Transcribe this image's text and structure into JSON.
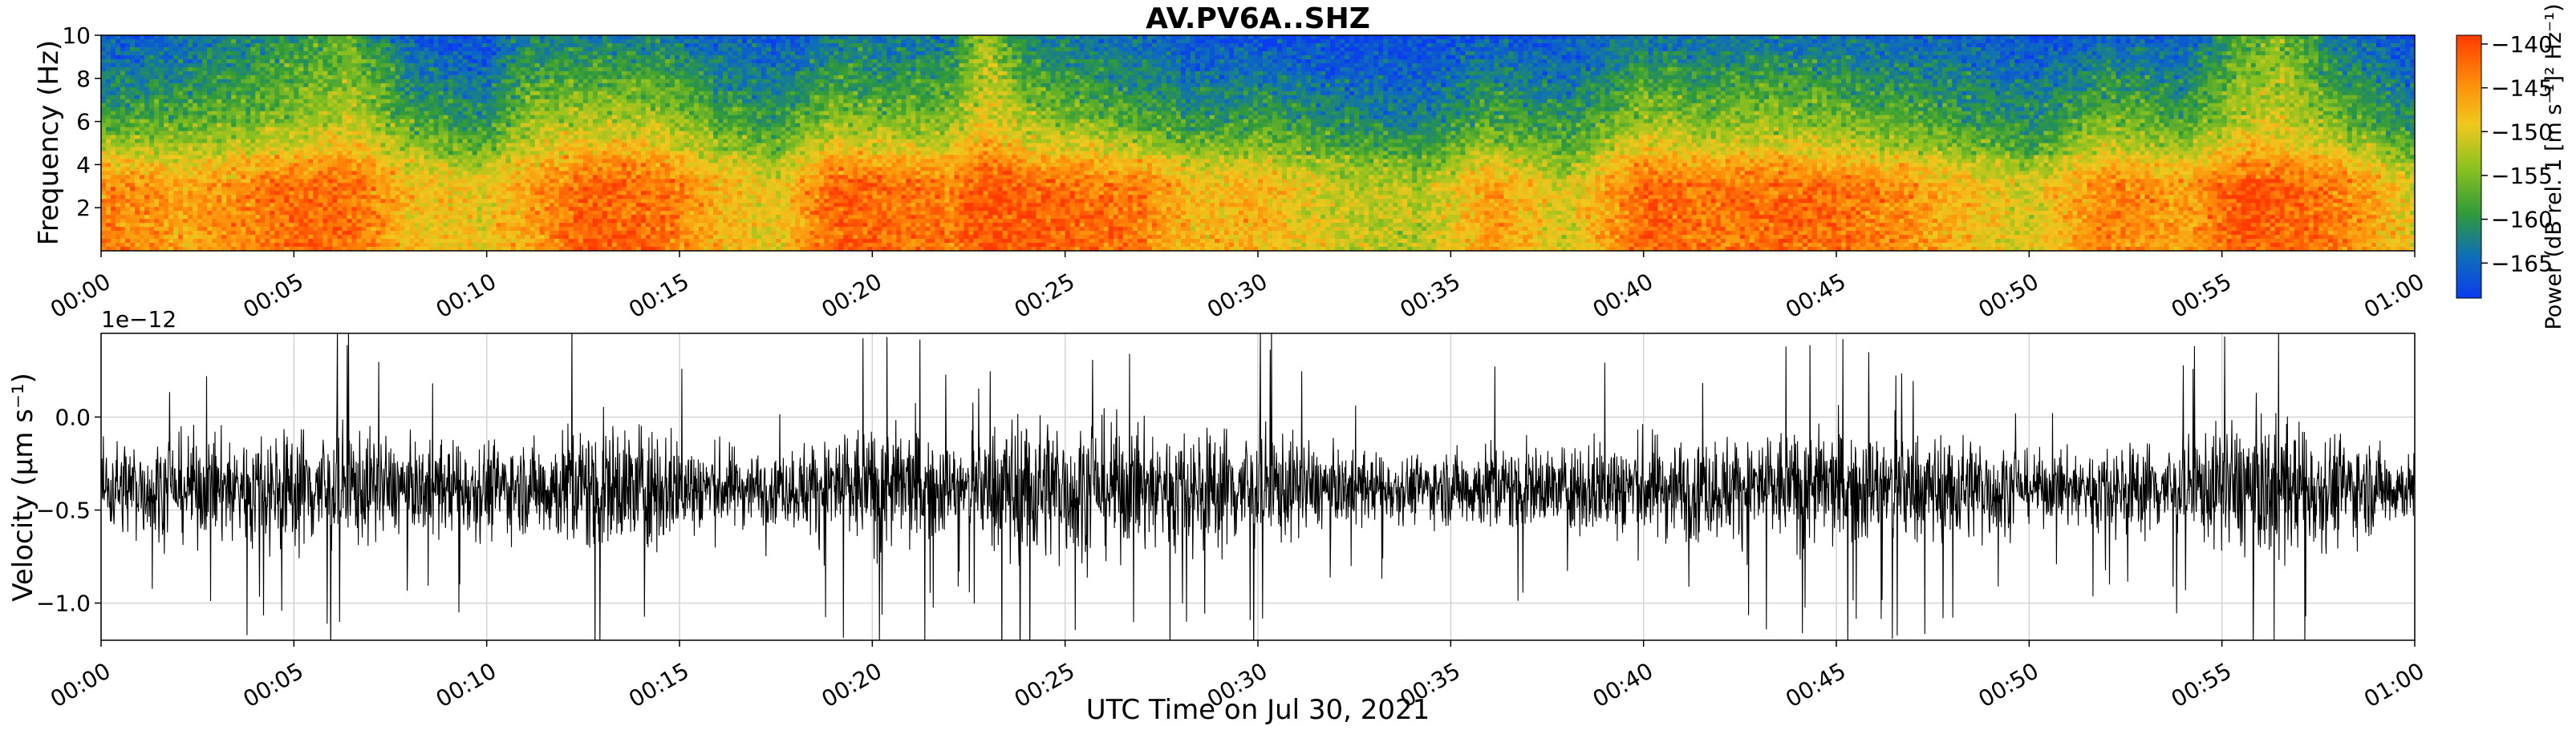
{
  "chart_data": [
    {
      "type": "heatmap",
      "title": "AV.PV6A..SHZ",
      "xlabel": "",
      "ylabel": "Frequency (Hz)",
      "x_ticks": [
        "00:00",
        "00:05",
        "00:10",
        "00:15",
        "00:20",
        "00:25",
        "00:30",
        "00:35",
        "00:40",
        "00:45",
        "00:50",
        "00:55",
        "01:00"
      ],
      "y_ticks": [
        2,
        4,
        6,
        8,
        10
      ],
      "ylim": [
        0,
        10
      ],
      "xlim_minutes": [
        0,
        60
      ],
      "colorbar": {
        "label": "Power (dB rel. 1 [m s⁻¹]² Hz⁻¹)",
        "ticks": [
          -140,
          -145,
          -150,
          -155,
          -160,
          -165
        ],
        "range": [
          -169,
          -139
        ],
        "colors": [
          "#0a3cf0",
          "#0f6fb8",
          "#2f9a3a",
          "#8fc21e",
          "#f0c81e",
          "#ff8c0a",
          "#ff3a00"
        ]
      },
      "band_power_db": {
        "minutes": [
          0,
          2,
          3,
          5,
          6.5,
          8,
          10,
          11,
          12.5,
          14.5,
          16,
          17.5,
          19,
          20.5,
          22,
          23,
          24,
          25.5,
          27,
          28.5,
          30,
          32,
          34.5,
          36,
          38,
          40,
          41.5,
          43,
          45,
          47,
          49,
          50,
          52,
          54,
          55.5,
          56.5,
          58,
          60
        ],
        "low_0_3hz": [
          -143,
          -146,
          -145,
          -142,
          -142,
          -148,
          -149,
          -146,
          -141,
          -142,
          -147,
          -150,
          -141,
          -142,
          -143,
          -140,
          -141,
          -142,
          -143,
          -148,
          -147,
          -151,
          -152,
          -145,
          -151,
          -141,
          -143,
          -142,
          -142,
          -145,
          -149,
          -151,
          -143,
          -146,
          -140,
          -141,
          -143,
          -150
        ],
        "mid_3_6hz": [
          -158,
          -157,
          -156,
          -154,
          -151,
          -157,
          -160,
          -154,
          -152,
          -152,
          -157,
          -159,
          -154,
          -155,
          -154,
          -149,
          -153,
          -155,
          -157,
          -160,
          -158,
          -161,
          -162,
          -157,
          -160,
          -153,
          -155,
          -154,
          -155,
          -157,
          -159,
          -161,
          -155,
          -158,
          -152,
          -151,
          -155,
          -161
        ],
        "high_6_10hz": [
          -167,
          -165,
          -163,
          -160,
          -157,
          -166,
          -168,
          -162,
          -163,
          -163,
          -165,
          -167,
          -163,
          -164,
          -163,
          -153,
          -162,
          -164,
          -165,
          -167,
          -167,
          -168,
          -168,
          -166,
          -167,
          -163,
          -164,
          -163,
          -164,
          -165,
          -166,
          -167,
          -165,
          -166,
          -158,
          -155,
          -163,
          -168
        ]
      }
    },
    {
      "type": "line",
      "title": "",
      "xlabel": "UTC Time on Jul 30, 2021",
      "ylabel": "Velocity (μm s⁻¹)",
      "offset_text": "1e−12",
      "x_ticks": [
        "00:00",
        "00:05",
        "00:10",
        "00:15",
        "00:20",
        "00:25",
        "00:30",
        "00:35",
        "00:40",
        "00:45",
        "00:50",
        "00:55",
        "01:00"
      ],
      "y_ticks": [
        0.0,
        -0.5,
        -1.0
      ],
      "y_tick_labels": [
        "0.0",
        "−0.5",
        "−1.0"
      ],
      "ylim": [
        -1.2,
        0.45
      ],
      "xlim_minutes": [
        0,
        60
      ],
      "grid": true,
      "series": [
        {
          "name": "velocity",
          "baseline": -0.38,
          "envelope_minutes": [
            0,
            3,
            5,
            6,
            8,
            10,
            11,
            12.5,
            14.5,
            16,
            17.5,
            19,
            21,
            22.5,
            23.5,
            25,
            27,
            28.5,
            30,
            32,
            34.5,
            36,
            38,
            39,
            41.5,
            43,
            45,
            47,
            49,
            50,
            52,
            54,
            55.5,
            56.5,
            58,
            60
          ],
          "envelope_amplitude": [
            0.42,
            0.5,
            0.55,
            0.62,
            0.38,
            0.45,
            0.4,
            0.62,
            0.55,
            0.4,
            0.3,
            0.55,
            0.58,
            0.35,
            0.7,
            0.65,
            0.58,
            0.55,
            0.6,
            0.32,
            0.3,
            0.42,
            0.36,
            0.52,
            0.45,
            0.52,
            0.55,
            0.5,
            0.48,
            0.3,
            0.4,
            0.45,
            0.62,
            0.62,
            0.5,
            0.3
          ]
        }
      ]
    }
  ]
}
